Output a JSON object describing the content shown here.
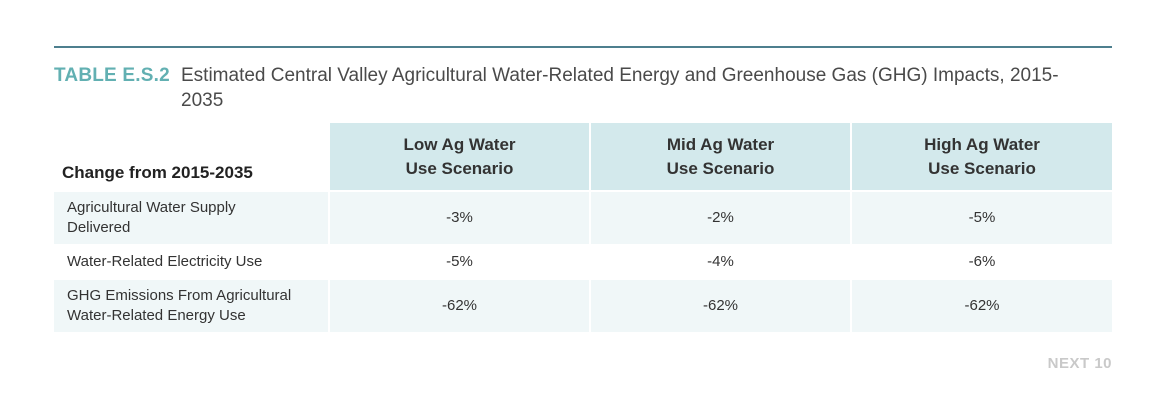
{
  "caption": {
    "label": "TABLE E.S.2",
    "text": "Estimated Central Valley Agricultural Water-Related Energy and Greenhouse Gas (GHG) Impacts, 2015-2035"
  },
  "table": {
    "row_header_label": "Change from 2015-2035",
    "columns": [
      {
        "line1": "Low Ag Water",
        "line2": "Use Scenario"
      },
      {
        "line1": "Mid Ag Water",
        "line2": "Use Scenario"
      },
      {
        "line1": "High Ag Water",
        "line2": "Use Scenario"
      }
    ],
    "rows": [
      {
        "label_line1": "Agricultural Water Supply",
        "label_line2": "Delivered",
        "values": [
          "-3%",
          "-2%",
          "-5%"
        ]
      },
      {
        "label_line1": "Water-Related Electricity Use",
        "label_line2": "",
        "values": [
          "-5%",
          "-4%",
          "-6%"
        ]
      },
      {
        "label_line1": "GHG Emissions From Agricultural",
        "label_line2": "Water-Related Energy Use",
        "values": [
          "-62%",
          "-62%",
          "-62%"
        ]
      }
    ]
  },
  "footer": {
    "mark": "NEXT 10"
  },
  "colors": {
    "rule": "#4d7f8e",
    "caption_label": "#62b0b2",
    "header_fill": "#d3e9ec",
    "row_fill": "#f0f7f8",
    "footer_mark": "#c9c9c9"
  }
}
